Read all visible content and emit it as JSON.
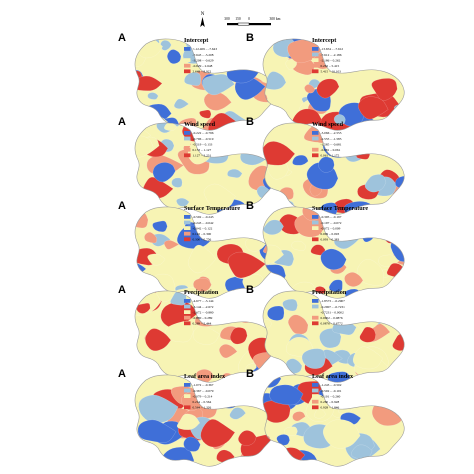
{
  "colors": {
    "c1": "#3f6fd8",
    "c2": "#9ec3dc",
    "c3": "#f7f4b4",
    "c4": "#f29b7e",
    "c5": "#de3a33",
    "bg": "#ffffff",
    "border": "#9c9c9c"
  },
  "north_arrow": {
    "label": "N",
    "icon": "north-arrow-icon"
  },
  "scale_bar": {
    "labels": [
      "300",
      "150",
      "0",
      "300 km"
    ]
  },
  "rows": [
    {
      "title": "Intercept",
      "panels": [
        {
          "letter": "A",
          "legend": [
            "<-12.409 – -7.643",
            "-7.643 – -3.208",
            "-3.208 – -0.629",
            "-0.629 – 2.648",
            "2.648 – 8.922"
          ]
        },
        {
          "letter": "B",
          "legend": [
            "-13.654 – -7.612",
            "-7.612 – -2.186",
            "-2.186 – 0.262",
            "0.262 – 5.415",
            "5.415 – 16.103"
          ]
        }
      ]
    },
    {
      "title": "Wind speed",
      "panels": [
        {
          "letter": "A",
          "legend": [
            "-0.222 – -0.796",
            "-0.796 – -0.519",
            "-0.519 – 0.133",
            "0.133 – 1.127",
            "1.127 – 3.231"
          ]
        },
        {
          "letter": "B",
          "legend": [
            "-3.066 – -2.555",
            "-2.555 – -1.585",
            "-1.585 – -0.681",
            "-0.681 – 0.061",
            "0.061 – 1.175"
          ]
        }
      ]
    },
    {
      "title": "Surface Temperature",
      "panels": [
        {
          "letter": "A",
          "legend": [
            "-0.592 – -0.243",
            "-0.243 – -0.042",
            "-0.042 – 0.122",
            "0.122 – 0.300",
            "0.300 – 0.756"
          ]
        },
        {
          "letter": "B",
          "legend": [
            "-0.395 – -0.197",
            "-0.197 – -0.072",
            "-0.072 – 0.009",
            "0.009 – 0.093",
            "0.093 – 0.383"
          ]
        }
      ]
    },
    {
      "title": "Precipitation",
      "panels": [
        {
          "letter": "A",
          "legend": [
            "-4.677 – -3.144",
            "-3.144 – -2.672",
            "-2.672 – -0.880",
            "-0.880 – 0.289",
            "0.289 – 2.444"
          ]
        },
        {
          "letter": "B",
          "legend": [
            "-1.8573 – -0.2907",
            "-0.2907 – -0.7231",
            "-0.7231 – 0.0002",
            "0.0002 – 0.0876",
            "0.0876 – 0.6772"
          ]
        }
      ]
    },
    {
      "title": "Leaf area index",
      "panels": [
        {
          "letter": "A",
          "legend": [
            "-1.072 – -0.367",
            "-0.367 – -0.079",
            "-0.079 – 0.214",
            "0.214 – 0.564",
            "0.564 – 1.326"
          ]
        },
        {
          "letter": "B",
          "legend": [
            "-1.243 – -0.502",
            "-0.502 – -0.101",
            "-0.101 – 0.260",
            "0.260 – 0.928",
            "0.928 – 1.846"
          ]
        }
      ]
    }
  ]
}
